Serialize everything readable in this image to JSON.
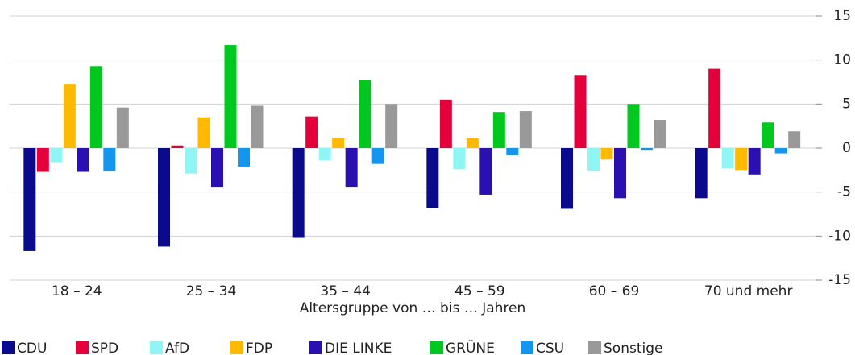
{
  "chart_data": {
    "type": "bar",
    "xlabel": "Altersgruppe von … bis … Jahren",
    "categories": [
      "18 – 24",
      "25 – 34",
      "35 – 44",
      "45 – 59",
      "60 – 69",
      "70 und mehr"
    ],
    "series": [
      {
        "name": "CDU",
        "color": "#0a0a8c",
        "values": [
          -11.7,
          -11.2,
          -10.2,
          -6.8,
          -6.9,
          -5.7
        ]
      },
      {
        "name": "SPD",
        "color": "#e3003b",
        "values": [
          -2.7,
          0.3,
          3.6,
          5.5,
          8.3,
          9.0
        ]
      },
      {
        "name": "AfD",
        "color": "#8ff5f5",
        "values": [
          -1.6,
          -2.9,
          -1.4,
          -2.4,
          -2.6,
          -2.3
        ]
      },
      {
        "name": "FDP",
        "color": "#ffb900",
        "values": [
          7.3,
          3.5,
          1.1,
          1.1,
          -1.3,
          -2.5
        ]
      },
      {
        "name": "DIE LINKE",
        "color": "#2a10b0",
        "values": [
          -2.7,
          -4.4,
          -4.4,
          -5.3,
          -5.7,
          -3.0
        ]
      },
      {
        "name": "GRÜNE",
        "color": "#00c81e",
        "values": [
          9.3,
          11.7,
          7.7,
          4.1,
          5.0,
          2.9
        ]
      },
      {
        "name": "CSU",
        "color": "#1496f0",
        "values": [
          -2.6,
          -2.1,
          -1.8,
          -0.8,
          -0.2,
          -0.6
        ]
      },
      {
        "name": "Sonstige",
        "color": "#999999",
        "values": [
          4.6,
          4.8,
          5.0,
          4.2,
          3.2,
          1.9
        ]
      }
    ],
    "ylim": [
      -15,
      15
    ],
    "yticks": [
      -15,
      -10,
      -5,
      0,
      5,
      10,
      15
    ],
    "grid": true,
    "legend": "bottom"
  }
}
